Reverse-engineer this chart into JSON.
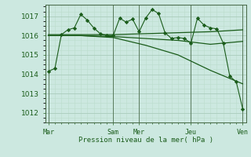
{
  "background_color": "#cce8e0",
  "grid_color_major": "#aaccbb",
  "grid_color_minor": "#bbddcc",
  "line_color": "#1a5c1a",
  "marker_color": "#1a5c1a",
  "xlabel": "Pression niveau de la mer( hPa )",
  "ylim": [
    1011.5,
    1017.6
  ],
  "yticks": [
    1012,
    1013,
    1014,
    1015,
    1016,
    1017
  ],
  "day_labels": [
    "Mar",
    "Sam",
    "Mer",
    "Jeu",
    "Ven"
  ],
  "day_positions": [
    0,
    60,
    84,
    132,
    180
  ],
  "series1_x": [
    0,
    6,
    12,
    18,
    24,
    30,
    36,
    42,
    48,
    54,
    60,
    66,
    72,
    78,
    84,
    90,
    96,
    102,
    108,
    114,
    120,
    126,
    132,
    138,
    144,
    150,
    156,
    162,
    168,
    174,
    180
  ],
  "series1_y": [
    1014.15,
    1014.3,
    1016.05,
    1016.3,
    1016.4,
    1017.1,
    1016.8,
    1016.4,
    1016.1,
    1016.0,
    1016.0,
    1016.9,
    1016.7,
    1016.85,
    1016.2,
    1016.9,
    1017.35,
    1017.15,
    1016.15,
    1015.85,
    1015.9,
    1015.85,
    1015.6,
    1016.9,
    1016.55,
    1016.4,
    1016.35,
    1015.6,
    1013.9,
    1013.6,
    1012.2
  ],
  "series2_x": [
    0,
    30,
    60,
    90,
    120,
    150,
    180
  ],
  "series2_y": [
    1016.05,
    1016.05,
    1016.05,
    1016.1,
    1016.15,
    1016.2,
    1016.3
  ],
  "series3_x": [
    0,
    30,
    60,
    90,
    120,
    150,
    180
  ],
  "series3_y": [
    1016.0,
    1016.0,
    1015.95,
    1015.85,
    1015.75,
    1015.55,
    1015.7
  ],
  "series4_x": [
    0,
    30,
    60,
    90,
    120,
    150,
    180
  ],
  "series4_y": [
    1016.0,
    1016.0,
    1015.9,
    1015.5,
    1015.0,
    1014.2,
    1013.5
  ]
}
